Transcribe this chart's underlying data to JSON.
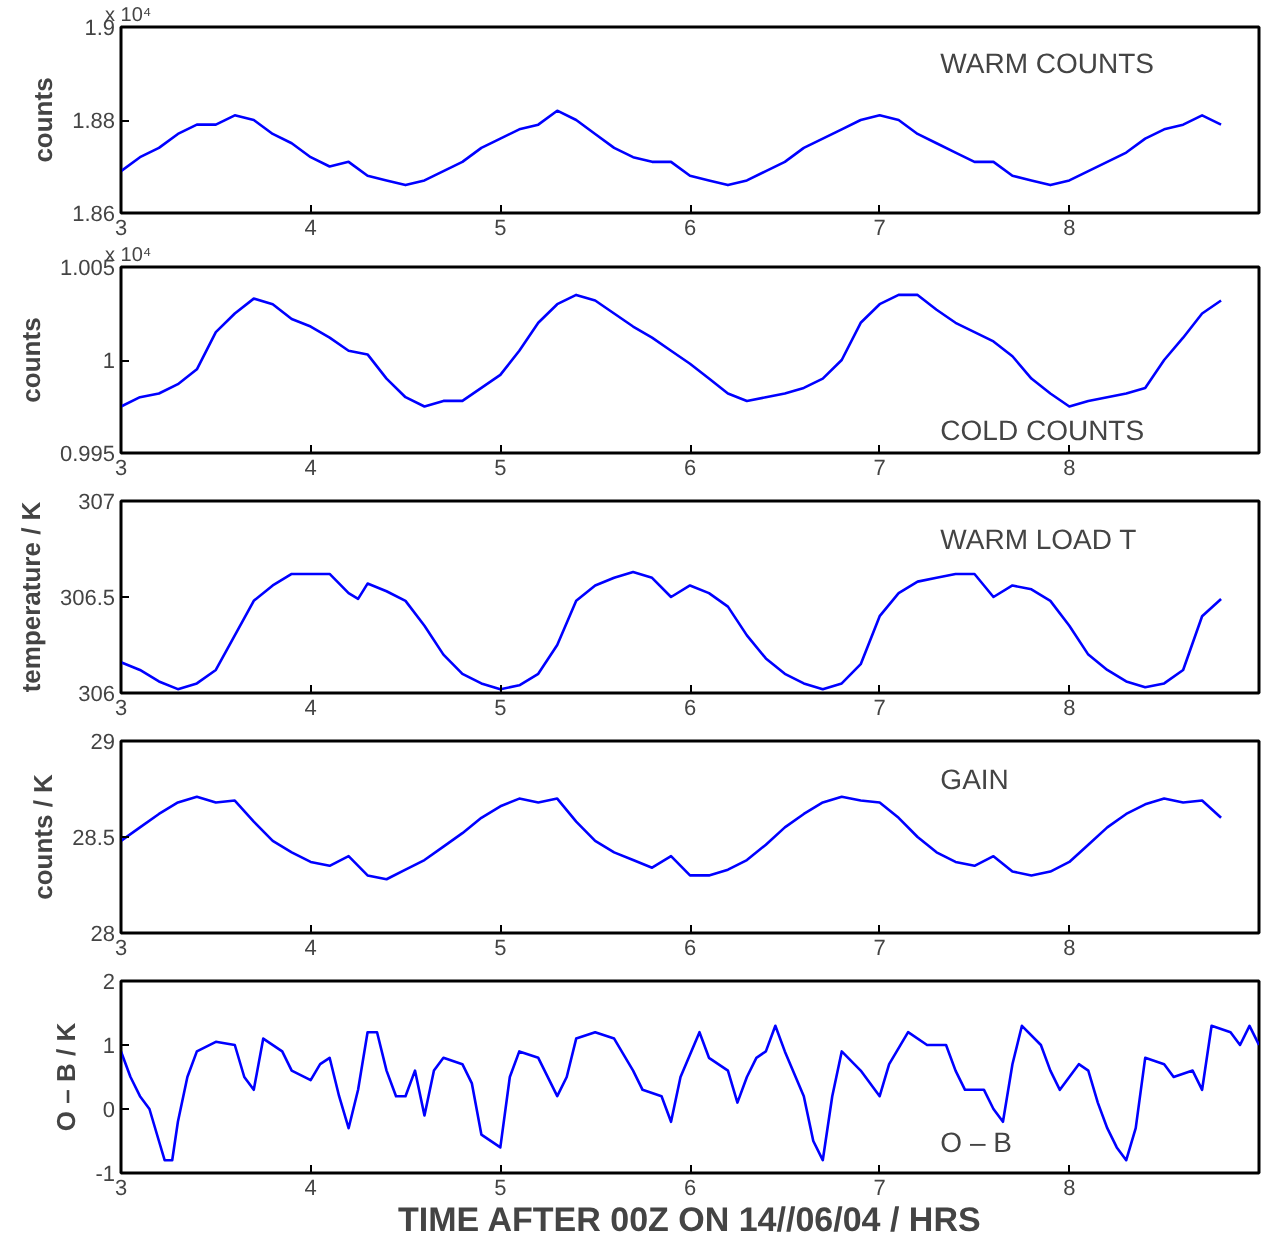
{
  "chart_data": [
    {
      "type": "line",
      "ylabel": "counts",
      "annotations": [
        "WARM COUNTS",
        "x 10⁴"
      ],
      "grid": false,
      "xlim": [
        3,
        9
      ],
      "xticks": [
        3,
        4,
        5,
        6,
        7,
        8
      ],
      "ylim": [
        1.86,
        1.9
      ],
      "yticks": [
        1.86,
        1.88,
        1.9
      ],
      "x": [
        3.0,
        3.1,
        3.2,
        3.3,
        3.4,
        3.5,
        3.6,
        3.7,
        3.8,
        3.9,
        4.0,
        4.1,
        4.2,
        4.3,
        4.4,
        4.5,
        4.6,
        4.7,
        4.8,
        4.9,
        5.0,
        5.1,
        5.2,
        5.3,
        5.4,
        5.5,
        5.6,
        5.7,
        5.8,
        5.9,
        6.0,
        6.1,
        6.2,
        6.3,
        6.4,
        6.5,
        6.6,
        6.7,
        6.8,
        6.9,
        7.0,
        7.1,
        7.2,
        7.3,
        7.4,
        7.5,
        7.6,
        7.7,
        7.8,
        7.9,
        8.0,
        8.1,
        8.2,
        8.3,
        8.4,
        8.5,
        8.6,
        8.7,
        8.8
      ],
      "series": [
        {
          "color": "#0000ff",
          "values": [
            1.869,
            1.872,
            1.874,
            1.877,
            1.879,
            1.879,
            1.881,
            1.88,
            1.877,
            1.875,
            1.872,
            1.87,
            1.871,
            1.868,
            1.867,
            1.866,
            1.867,
            1.869,
            1.871,
            1.874,
            1.876,
            1.878,
            1.879,
            1.882,
            1.88,
            1.877,
            1.874,
            1.872,
            1.871,
            1.871,
            1.868,
            1.867,
            1.866,
            1.867,
            1.869,
            1.871,
            1.874,
            1.876,
            1.878,
            1.88,
            1.881,
            1.88,
            1.877,
            1.875,
            1.873,
            1.871,
            1.871,
            1.868,
            1.867,
            1.866,
            1.867,
            1.869,
            1.871,
            1.873,
            1.876,
            1.878,
            1.879,
            1.881,
            1.879
          ]
        }
      ]
    },
    {
      "type": "line",
      "ylabel": "counts",
      "annotations": [
        "COLD COUNTS",
        "x 10⁴"
      ],
      "grid": false,
      "xlim": [
        3,
        9
      ],
      "xticks": [
        3,
        4,
        5,
        6,
        7,
        8
      ],
      "ylim": [
        0.995,
        1.005
      ],
      "yticks": [
        0.995,
        1,
        1.005
      ],
      "x": [
        3.0,
        3.1,
        3.2,
        3.3,
        3.4,
        3.5,
        3.6,
        3.7,
        3.8,
        3.9,
        4.0,
        4.1,
        4.2,
        4.3,
        4.4,
        4.5,
        4.6,
        4.7,
        4.8,
        4.9,
        5.0,
        5.1,
        5.2,
        5.3,
        5.4,
        5.5,
        5.6,
        5.7,
        5.8,
        5.9,
        6.0,
        6.1,
        6.2,
        6.3,
        6.4,
        6.5,
        6.6,
        6.7,
        6.8,
        6.9,
        7.0,
        7.1,
        7.2,
        7.3,
        7.4,
        7.5,
        7.6,
        7.7,
        7.8,
        7.9,
        8.0,
        8.1,
        8.2,
        8.3,
        8.4,
        8.5,
        8.6,
        8.7,
        8.8
      ],
      "series": [
        {
          "color": "#0000ff",
          "values": [
            0.9975,
            0.998,
            0.9982,
            0.9987,
            0.9995,
            1.0015,
            1.0025,
            1.0033,
            1.003,
            1.0022,
            1.0018,
            1.0012,
            1.0005,
            1.0003,
            0.999,
            0.998,
            0.9975,
            0.9978,
            0.9978,
            0.9985,
            0.9992,
            1.0005,
            1.002,
            1.003,
            1.0035,
            1.0032,
            1.0025,
            1.0018,
            1.0012,
            1.0005,
            0.9998,
            0.999,
            0.9982,
            0.9978,
            0.998,
            0.9982,
            0.9985,
            0.999,
            1.0,
            1.002,
            1.003,
            1.0035,
            1.0035,
            1.0027,
            1.002,
            1.0015,
            1.001,
            1.0002,
            0.999,
            0.9982,
            0.9975,
            0.9978,
            0.998,
            0.9982,
            0.9985,
            1.0,
            1.0012,
            1.0025,
            1.0032
          ]
        }
      ]
    },
    {
      "type": "line",
      "ylabel": "temperature / K",
      "annotations": [
        "WARM LOAD T"
      ],
      "grid": false,
      "xlim": [
        3,
        9
      ],
      "xticks": [
        3,
        4,
        5,
        6,
        7,
        8
      ],
      "ylim": [
        306,
        307
      ],
      "yticks": [
        306,
        306.5,
        307
      ],
      "x": [
        3.0,
        3.1,
        3.2,
        3.3,
        3.4,
        3.5,
        3.6,
        3.7,
        3.8,
        3.9,
        4.0,
        4.1,
        4.2,
        4.25,
        4.3,
        4.4,
        4.5,
        4.6,
        4.7,
        4.8,
        4.9,
        5.0,
        5.1,
        5.2,
        5.3,
        5.4,
        5.5,
        5.6,
        5.7,
        5.8,
        5.9,
        6.0,
        6.1,
        6.2,
        6.3,
        6.4,
        6.5,
        6.6,
        6.7,
        6.8,
        6.9,
        7.0,
        7.1,
        7.2,
        7.3,
        7.4,
        7.5,
        7.6,
        7.7,
        7.8,
        7.9,
        8.0,
        8.1,
        8.2,
        8.3,
        8.4,
        8.5,
        8.6,
        8.7,
        8.8
      ],
      "series": [
        {
          "color": "#0000ff",
          "values": [
            306.16,
            306.12,
            306.06,
            306.02,
            306.05,
            306.12,
            306.3,
            306.48,
            306.56,
            306.62,
            306.62,
            306.62,
            306.52,
            306.49,
            306.57,
            306.53,
            306.48,
            306.35,
            306.2,
            306.1,
            306.05,
            306.02,
            306.04,
            306.1,
            306.25,
            306.48,
            306.56,
            306.6,
            306.63,
            306.6,
            306.5,
            306.56,
            306.52,
            306.45,
            306.3,
            306.18,
            306.1,
            306.05,
            306.02,
            306.05,
            306.15,
            306.4,
            306.52,
            306.58,
            306.6,
            306.62,
            306.62,
            306.5,
            306.56,
            306.54,
            306.48,
            306.35,
            306.2,
            306.12,
            306.06,
            306.03,
            306.05,
            306.12,
            306.4,
            306.49
          ]
        }
      ]
    },
    {
      "type": "line",
      "ylabel": "counts / K",
      "annotations": [
        "GAIN"
      ],
      "grid": false,
      "xlim": [
        3,
        9
      ],
      "xticks": [
        3,
        4,
        5,
        6,
        7,
        8
      ],
      "ylim": [
        28,
        29
      ],
      "yticks": [
        28,
        28.5,
        29
      ],
      "x": [
        3.0,
        3.1,
        3.2,
        3.3,
        3.4,
        3.5,
        3.6,
        3.7,
        3.8,
        3.9,
        4.0,
        4.1,
        4.2,
        4.3,
        4.4,
        4.5,
        4.6,
        4.7,
        4.8,
        4.9,
        5.0,
        5.1,
        5.2,
        5.3,
        5.4,
        5.5,
        5.6,
        5.7,
        5.8,
        5.9,
        6.0,
        6.1,
        6.2,
        6.3,
        6.4,
        6.5,
        6.6,
        6.7,
        6.8,
        6.9,
        7.0,
        7.1,
        7.2,
        7.3,
        7.4,
        7.5,
        7.6,
        7.7,
        7.8,
        7.9,
        8.0,
        8.1,
        8.2,
        8.3,
        8.4,
        8.5,
        8.6,
        8.7,
        8.8
      ],
      "series": [
        {
          "color": "#0000ff",
          "values": [
            28.48,
            28.55,
            28.62,
            28.68,
            28.71,
            28.68,
            28.69,
            28.58,
            28.48,
            28.42,
            28.37,
            28.35,
            28.4,
            28.3,
            28.28,
            28.33,
            28.38,
            28.45,
            28.52,
            28.6,
            28.66,
            28.7,
            28.68,
            28.7,
            28.58,
            28.48,
            28.42,
            28.38,
            28.34,
            28.4,
            28.3,
            28.3,
            28.33,
            28.38,
            28.46,
            28.55,
            28.62,
            28.68,
            28.71,
            28.69,
            28.68,
            28.6,
            28.5,
            28.42,
            28.37,
            28.35,
            28.4,
            28.32,
            28.3,
            28.32,
            28.37,
            28.46,
            28.55,
            28.62,
            28.67,
            28.7,
            28.68,
            28.69,
            28.6
          ]
        }
      ]
    },
    {
      "type": "line",
      "ylabel": "O – B / K",
      "xlabel": "TIME AFTER 00Z ON 14//06/04 / HRS",
      "annotations": [
        "O – B"
      ],
      "grid": false,
      "xlim": [
        3,
        9
      ],
      "xticks": [
        3,
        4,
        5,
        6,
        7,
        8
      ],
      "ylim": [
        -1,
        2
      ],
      "yticks": [
        -1,
        0,
        1,
        2
      ],
      "x": [
        3.0,
        3.05,
        3.1,
        3.15,
        3.2,
        3.23,
        3.27,
        3.3,
        3.35,
        3.4,
        3.5,
        3.6,
        3.65,
        3.7,
        3.75,
        3.85,
        3.9,
        4.0,
        4.05,
        4.1,
        4.15,
        4.2,
        4.25,
        4.3,
        4.35,
        4.4,
        4.45,
        4.5,
        4.55,
        4.6,
        4.65,
        4.7,
        4.8,
        4.85,
        4.9,
        5.0,
        5.05,
        5.1,
        5.2,
        5.3,
        5.35,
        5.4,
        5.5,
        5.6,
        5.7,
        5.75,
        5.85,
        5.9,
        5.95,
        6.05,
        6.1,
        6.2,
        6.25,
        6.3,
        6.35,
        6.4,
        6.45,
        6.5,
        6.6,
        6.65,
        6.7,
        6.75,
        6.8,
        6.9,
        7.0,
        7.05,
        7.15,
        7.25,
        7.35,
        7.4,
        7.45,
        7.55,
        7.6,
        7.65,
        7.7,
        7.75,
        7.85,
        7.9,
        7.95,
        8.0,
        8.05,
        8.1,
        8.15,
        8.2,
        8.25,
        8.3,
        8.35,
        8.4,
        8.5,
        8.55,
        8.65,
        8.7,
        8.75,
        8.85,
        8.9,
        8.95,
        9.0
      ],
      "series": [
        {
          "color": "#0000ff",
          "values": [
            0.9,
            0.5,
            0.2,
            0.0,
            -0.5,
            -0.8,
            -0.8,
            -0.2,
            0.5,
            0.9,
            1.05,
            1.0,
            0.5,
            0.3,
            1.1,
            0.9,
            0.6,
            0.45,
            0.7,
            0.8,
            0.2,
            -0.3,
            0.3,
            1.2,
            1.2,
            0.6,
            0.2,
            0.2,
            0.6,
            -0.1,
            0.6,
            0.8,
            0.7,
            0.4,
            -0.4,
            -0.6,
            0.5,
            0.9,
            0.8,
            0.2,
            0.5,
            1.1,
            1.2,
            1.1,
            0.6,
            0.3,
            0.2,
            -0.2,
            0.5,
            1.2,
            0.8,
            0.6,
            0.1,
            0.5,
            0.8,
            0.9,
            1.3,
            0.9,
            0.2,
            -0.5,
            -0.8,
            0.2,
            0.9,
            0.6,
            0.2,
            0.7,
            1.2,
            1.0,
            1.0,
            0.6,
            0.3,
            0.3,
            0.0,
            -0.2,
            0.7,
            1.3,
            1.0,
            0.6,
            0.3,
            0.5,
            0.7,
            0.6,
            0.1,
            -0.3,
            -0.6,
            -0.8,
            -0.3,
            0.8,
            0.7,
            0.5,
            0.6,
            0.3,
            1.3,
            1.2,
            1.0,
            1.3,
            1.0
          ]
        }
      ]
    }
  ]
}
